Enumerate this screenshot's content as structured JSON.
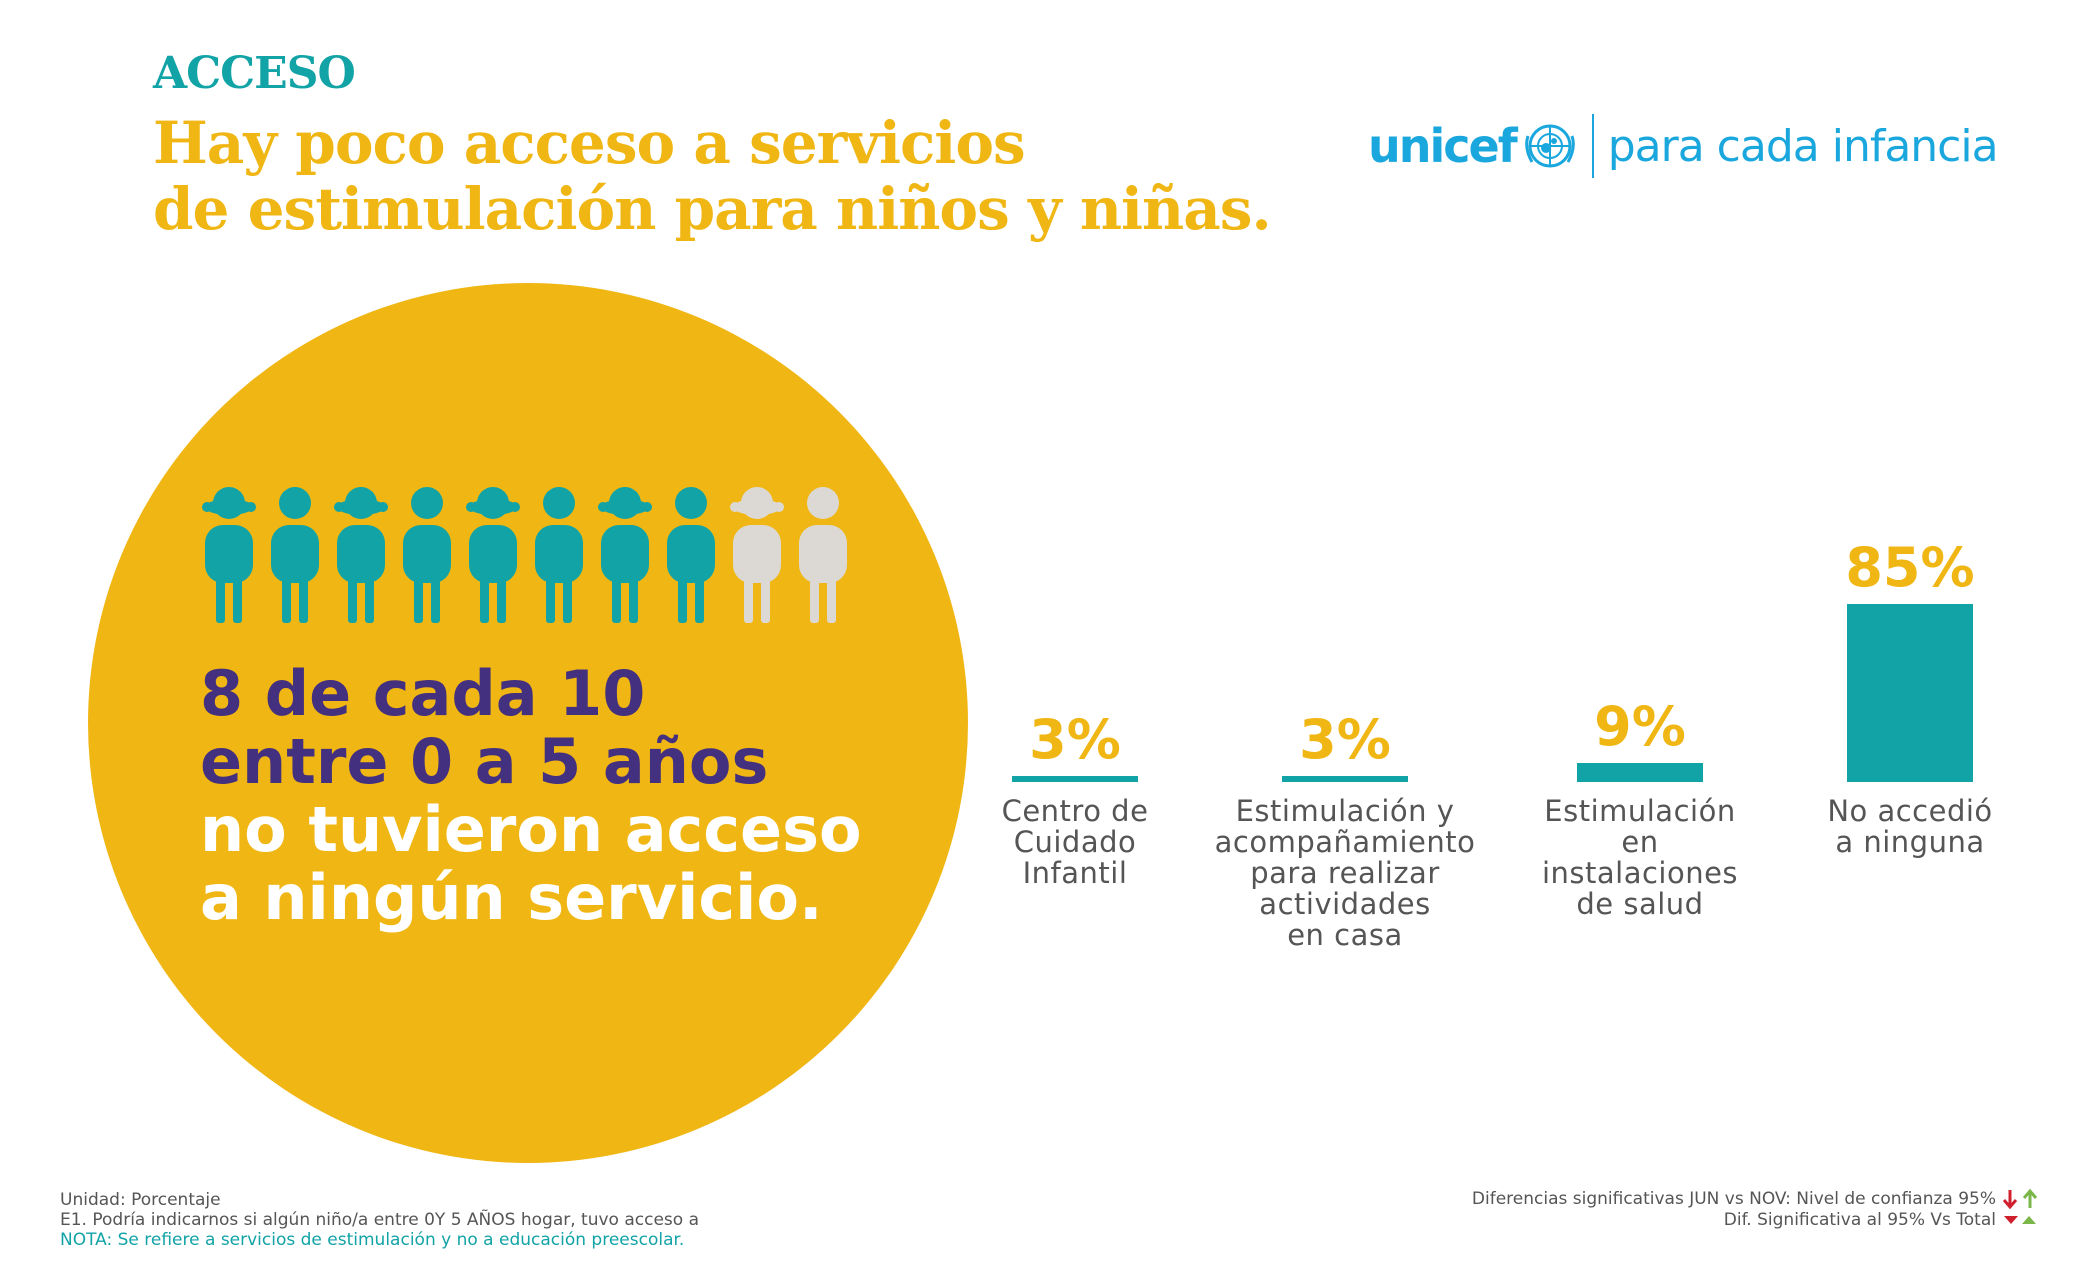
{
  "header": {
    "section": "ACCESO",
    "title_line1": "Hay poco acceso a servicios",
    "title_line2": "de estimulación para niños y niñas."
  },
  "logo": {
    "word": "unicef",
    "tagline": "para cada infancia",
    "emblem_icon": "unicef-emblem-icon"
  },
  "highlight": {
    "line1": "8 de cada 10",
    "line2": "entre 0 a 5 años",
    "line3": "no tuvieron acceso",
    "line4": "a ningún servicio.",
    "figures_total": 10,
    "figures_highlighted": 8,
    "colors": {
      "highlight": "#11a3a6",
      "rest": "#dcd9d5",
      "circle": "#f0b614"
    }
  },
  "chart_data": {
    "type": "bar",
    "categories": [
      "Centro de Cuidado Infantil",
      "Estimulación y acompañamiento para realizar actividades en casa",
      "Estimulación en instalaciones de salud",
      "No accedió a ninguna"
    ],
    "category_lines": [
      [
        "Centro de",
        "Cuidado",
        "Infantil"
      ],
      [
        "Estimulación y",
        "acompañamiento",
        "para realizar",
        "actividades",
        "en casa"
      ],
      [
        "Estimulación",
        "en",
        "instalaciones",
        "de salud"
      ],
      [
        "No accedió",
        "a ninguna"
      ]
    ],
    "values": [
      3,
      3,
      9,
      85
    ],
    "value_labels": [
      "3%",
      "3%",
      "9%",
      "85%"
    ],
    "ylim": [
      0,
      85
    ],
    "bar_color": "#11a3a6",
    "label_color": "#f0b614"
  },
  "footer": {
    "unit": "Unidad: Porcentaje",
    "question": "E1.  Podría indicarnos si algún niño/a entre 0Y 5 AÑOS hogar, tuvo acceso a",
    "note": "NOTA:  Se refiere a servicios de estimulación y no a educación preescolar.",
    "legend1": "Diferencias significativas JUN vs NOV: Nivel de confianza 95%",
    "legend2": "Dif. Significativa al 95% Vs Total",
    "colors": {
      "down": "#d0202e",
      "up": "#7ab648"
    }
  }
}
